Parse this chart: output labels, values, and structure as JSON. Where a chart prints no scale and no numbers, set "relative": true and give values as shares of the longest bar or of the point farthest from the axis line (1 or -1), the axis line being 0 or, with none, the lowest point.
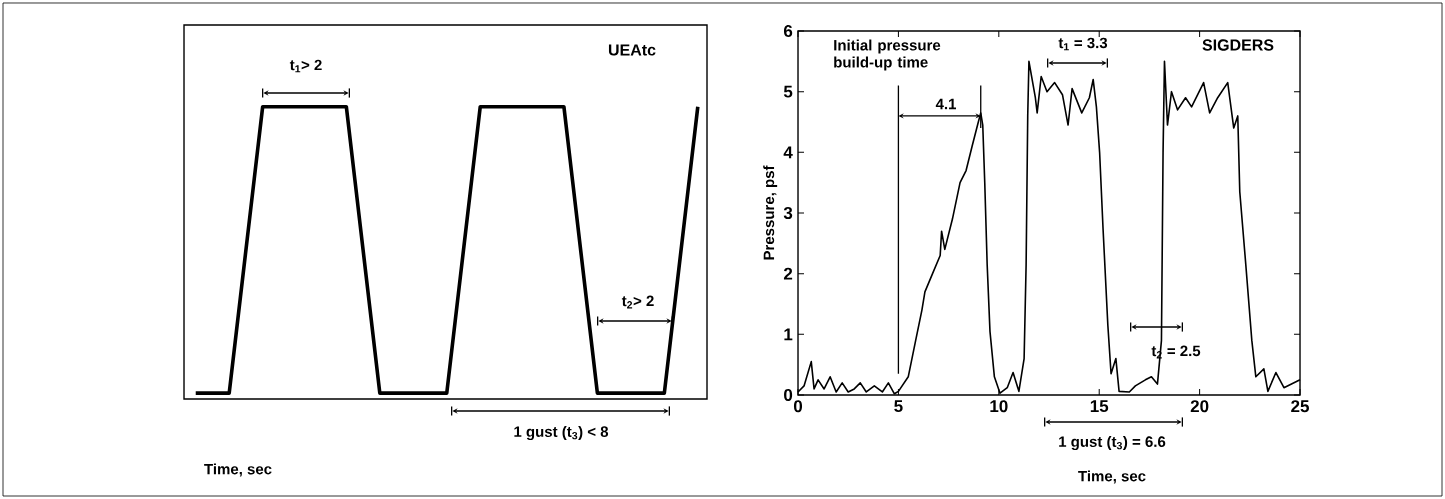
{
  "chart_data": [
    {
      "type": "line",
      "relative": true,
      "title": "UEAtc",
      "xlabel": "Time, sec",
      "color": "#000000",
      "categories": [
        null,
        null,
        null,
        null,
        null,
        null,
        null,
        null,
        null,
        null,
        null,
        null,
        null,
        null,
        null,
        null,
        null,
        null,
        null,
        null,
        null,
        null,
        null,
        null,
        null,
        null,
        null,
        null,
        null,
        null,
        null,
        null,
        null,
        null,
        null,
        null,
        null,
        null,
        null,
        null,
        null,
        null,
        null,
        null,
        null,
        null,
        null,
        null,
        null,
        null,
        null,
        null,
        null,
        null,
        null,
        null,
        null,
        null,
        null,
        null,
        null
      ],
      "values": [
        0.02,
        0.02,
        0.02,
        0.02,
        0.02,
        0.265,
        0.51,
        0.755,
        1,
        1,
        1,
        1,
        1,
        1,
        1,
        1,
        1,
        1,
        1,
        0.755,
        0.51,
        0.265,
        0.02,
        0.02,
        0.02,
        0.02,
        0.02,
        0.02,
        0.02,
        0.02,
        0.02,
        0.265,
        0.51,
        0.755,
        1,
        1,
        1,
        1,
        1,
        1,
        1,
        1,
        1,
        1,
        1,
        0.755,
        0.51,
        0.265,
        0.02,
        0.02,
        0.02,
        0.02,
        0.02,
        0.02,
        0.02,
        0.02,
        0.02,
        0.265,
        0.51,
        0.755,
        1
      ],
      "annotations": [
        "t$_{1}$> 2",
        "t$_{2}$> 2",
        "1 gust (t$_{3}$) < 8"
      ]
    },
    {
      "type": "line",
      "title": "SIGDERS",
      "xlabel": "Time, sec",
      "ylabel": "Pressure, psf",
      "color": "#000000",
      "ref_lines": [
        {
          "axis": "x",
          "value": 5
        },
        {
          "axis": "x",
          "value": 9.1
        }
      ],
      "xlim": [
        0,
        25
      ],
      "ylim": [
        0,
        6
      ],
      "xticks": [
        0,
        5,
        10,
        15,
        20,
        25
      ],
      "yticks": [
        0,
        1,
        2,
        3,
        4,
        5,
        6
      ],
      "x": [
        0,
        0.3,
        0.66,
        0.8,
        1.0,
        1.3,
        1.6,
        1.9,
        2.2,
        2.5,
        2.8,
        3.1,
        3.4,
        3.8,
        4.2,
        4.5,
        4.8,
        5.0,
        5.49,
        5.86,
        6.17,
        6.32,
        6.7,
        7.08,
        7.15,
        7.31,
        7.69,
        8.07,
        8.37,
        8.67,
        8.98,
        9.1,
        9.2,
        9.3,
        9.42,
        9.56,
        9.78,
        10.06,
        10.42,
        10.71,
        11.0,
        11.26,
        11.36,
        11.44,
        11.5,
        11.82,
        11.91,
        12.11,
        12.4,
        12.78,
        13.17,
        13.45,
        13.65,
        14.13,
        14.51,
        14.7,
        14.86,
        15.02,
        15.19,
        15.43,
        15.59,
        15.83,
        15.99,
        16.5,
        16.8,
        17.3,
        17.6,
        17.9,
        18.1,
        18.18,
        18.25,
        18.4,
        18.6,
        18.9,
        19.3,
        19.6,
        20.2,
        20.5,
        20.9,
        21.4,
        21.7,
        21.9,
        22.0,
        22.3,
        22.6,
        22.8,
        23.2,
        23.4,
        23.8,
        24.2,
        25
      ],
      "values": [
        0.05,
        0.15,
        0.55,
        0.1,
        0.25,
        0.1,
        0.3,
        0.05,
        0.2,
        0.05,
        0.1,
        0.2,
        0.05,
        0.15,
        0.05,
        0.2,
        0.02,
        0.06,
        0.3,
        0.9,
        1.4,
        1.7,
        2.0,
        2.3,
        2.7,
        2.4,
        2.9,
        3.5,
        3.7,
        4.1,
        4.5,
        4.65,
        4.45,
        3.5,
        2.15,
        1.05,
        0.3,
        0.03,
        0.12,
        0.37,
        0.06,
        0.6,
        2.15,
        4.6,
        5.5,
        4.9,
        4.65,
        5.25,
        5.0,
        5.15,
        4.95,
        4.45,
        5.05,
        4.65,
        4.9,
        5.2,
        4.75,
        4.0,
        2.75,
        1.15,
        0.35,
        0.6,
        0.06,
        0.05,
        0.15,
        0.25,
        0.3,
        0.18,
        0.9,
        4.0,
        5.5,
        4.45,
        5.0,
        4.7,
        4.9,
        4.75,
        5.15,
        4.65,
        4.9,
        5.15,
        4.4,
        4.6,
        3.35,
        2.15,
        0.9,
        0.3,
        0.43,
        0.06,
        0.37,
        0.12,
        0.25
      ],
      "annotations": [
        "Initial pressure build-up time",
        "4.1",
        "t$_{1}$ = 3.3",
        "t$_{2}$ = 2.5",
        "1 gust (t$_{3}$) = 6.6"
      ]
    }
  ]
}
